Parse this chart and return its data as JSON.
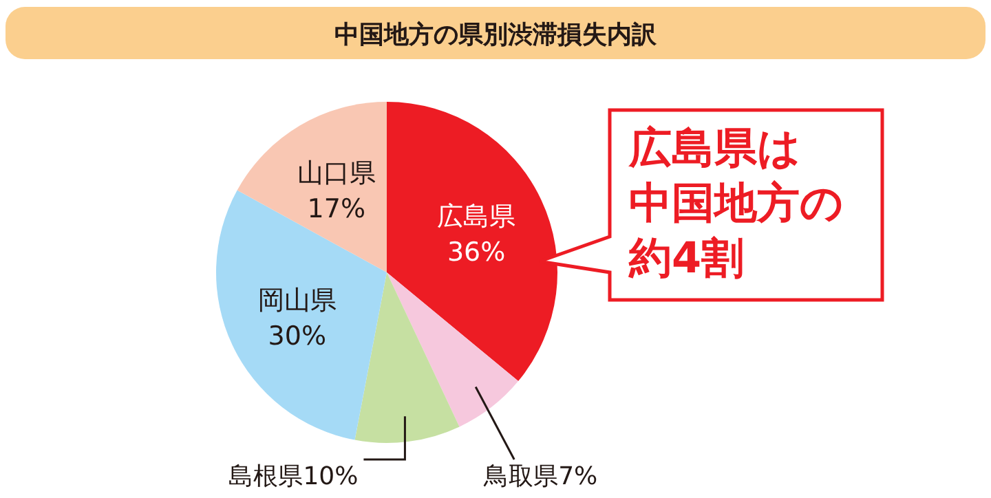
{
  "chart_data": {
    "type": "pie",
    "title": "中国地方の県別渋滞損失内訳",
    "categories": [
      "広島県",
      "鳥取県",
      "島根県",
      "岡山県",
      "山口県"
    ],
    "values": [
      36,
      7,
      10,
      30,
      17
    ],
    "value_labels": [
      "36%",
      "7%",
      "10%",
      "30%",
      "17%"
    ],
    "colors": [
      "#ed1c24",
      "#f6c8dd",
      "#c6e0a2",
      "#a5daf6",
      "#f9c7b3"
    ],
    "annotations": [
      "広島県は",
      "中国地方の",
      "約4割"
    ]
  }
}
